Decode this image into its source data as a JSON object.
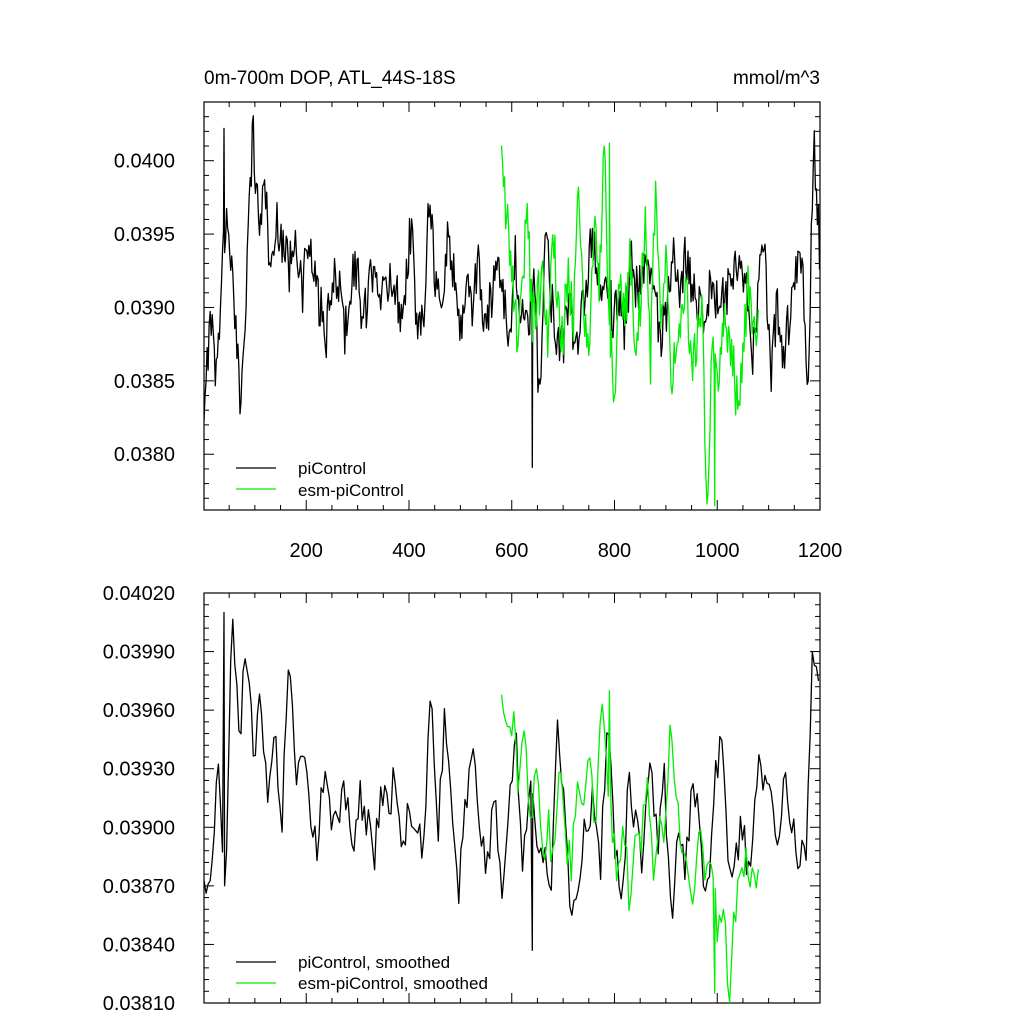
{
  "figure": {
    "title_left": "0m-700m DOP, ATL_44S-18S",
    "title_right": "mmol/m^3"
  },
  "colors": {
    "piControl": "#000000",
    "esm_piControl": "#00ee00",
    "axes": "#000000",
    "background": "#ffffff"
  },
  "chart_data": [
    {
      "type": "line",
      "title": "0m-700m DOP, ATL_44S-18S",
      "units": "mmol/m^3",
      "xlim": [
        1,
        1200
      ],
      "ylim": [
        0.03762,
        0.0404
      ],
      "x_ticks": [
        200,
        400,
        600,
        800,
        1000,
        1200
      ],
      "x_tick_labels": [
        "200",
        "400",
        "600",
        "800",
        "1000",
        "1200"
      ],
      "y_ticks": [
        0.038,
        0.0385,
        0.039,
        0.0395,
        0.04
      ],
      "y_tick_labels": [
        "0.0380",
        "0.0385",
        "0.0390",
        "0.0395",
        "0.0400"
      ],
      "legend_position": "bottom-left",
      "grid": false,
      "series": [
        {
          "name": "piControl",
          "x_range": [
            1,
            1200
          ],
          "mean": 0.03915,
          "approx_values": [
            0.03812,
            0.03905,
            0.0385,
            0.03935,
            0.03965,
            0.0389,
            0.03835,
            0.03925,
            0.04022,
            0.03955,
            0.03985,
            0.0392,
            0.0396,
            0.03945,
            0.03925,
            0.0396,
            0.03905,
            0.03945,
            0.0392,
            0.039,
            0.0388,
            0.0391,
            0.03925,
            0.0388,
            0.03915,
            0.0393,
            0.0389,
            0.03905,
            0.0394,
            0.03905,
            0.0391,
            0.03925,
            0.03895,
            0.03915,
            0.0396,
            0.03875,
            0.039,
            0.03985,
            0.03915,
            0.03895,
            0.0395,
            0.03925,
            0.0388,
            0.0392,
            0.039,
            0.03935,
            0.0388,
            0.03905,
            0.03935,
            0.0392,
            0.0387,
            0.03935,
            0.03895,
            0.0388,
            0.0392,
            0.03835,
            0.03955,
            0.03905,
            0.0388,
            0.0388,
            0.03905,
            0.03862,
            0.03895,
            0.0393,
            0.0395,
            0.039,
            0.0392,
            0.03895,
            0.03905,
            0.03885,
            0.03935,
            0.0391,
            0.03935,
            0.03925,
            0.03905,
            0.0388,
            0.039,
            0.0393,
            0.039,
            0.03938,
            0.03918,
            0.03905,
            0.039,
            0.0391,
            0.03905,
            0.03902,
            0.0391,
            0.0392,
            0.03925,
            0.03905,
            0.03865,
            0.0392,
            0.0393,
            0.03855,
            0.03905,
            0.0386,
            0.03895,
            0.0392,
            0.03935,
            0.03838,
            0.04018,
            0.03935
          ],
          "peak": [
            40,
            0.04022
          ],
          "min": [
            640,
            0.03791
          ]
        },
        {
          "name": "esm-piControl",
          "x_range": [
            580,
            1080
          ],
          "mean": 0.03905,
          "approx_values": [
            0.03995,
            0.0396,
            0.0393,
            0.03885,
            0.03915,
            0.03965,
            0.0389,
            0.03905,
            0.0392,
            0.03875,
            0.03955,
            0.039,
            0.0388,
            0.0393,
            0.03885,
            0.0398,
            0.03895,
            0.03875,
            0.0396,
            0.03905,
            0.04012,
            0.0389,
            0.0384,
            0.0392,
            0.0389,
            0.03935,
            0.0387,
            0.03905,
            0.03965,
            0.0386,
            0.03985,
            0.0388,
            0.03945,
            0.03855,
            0.0387,
            0.039,
            0.0391,
            0.0385,
            0.0388,
            0.03908,
            0.03765,
            0.0387,
            0.03845,
            0.0389,
            0.0388,
            0.03865,
            0.03828,
            0.0387,
            0.03912,
            0.0388,
            0.0389
          ],
          "peak": [
            790,
            0.04012
          ],
          "min": [
            995,
            0.03765
          ]
        }
      ]
    },
    {
      "type": "line",
      "title": "",
      "xlim": [
        1,
        1200
      ],
      "ylim": [
        0.0381,
        0.0402
      ],
      "x_ticks": [
        200,
        400,
        600,
        800,
        1000,
        1200
      ],
      "x_tick_labels": [
        "",
        "",
        "",
        "",
        "",
        ""
      ],
      "y_ticks": [
        0.0381,
        0.0384,
        0.0387,
        0.039,
        0.0393,
        0.0396,
        0.0399,
        0.0402
      ],
      "y_tick_labels": [
        "0.03810",
        "0.03840",
        "0.03870",
        "0.03900",
        "0.03930",
        "0.03960",
        "0.03990",
        "0.04020"
      ],
      "legend_position": "bottom-left",
      "grid": false,
      "series": [
        {
          "name": "piControl, smoothed",
          "x_range": [
            1,
            1200
          ],
          "approx_values": [
            0.03865,
            0.03875,
            0.03935,
            0.0387,
            0.0401,
            0.03945,
            0.03995,
            0.03935,
            0.03965,
            0.0392,
            0.03945,
            0.039,
            0.03985,
            0.0392,
            0.03935,
            0.0391,
            0.0389,
            0.0393,
            0.039,
            0.0391,
            0.0392,
            0.0388,
            0.03915,
            0.03905,
            0.0388,
            0.0392,
            0.03905,
            0.0393,
            0.03895,
            0.03905,
            0.03905,
            0.0388,
            0.0398,
            0.0389,
            0.0396,
            0.039,
            0.0387,
            0.0391,
            0.03935,
            0.03895,
            0.0388,
            0.0392,
            0.0387,
            0.03905,
            0.0395,
            0.0388,
            0.0392,
            0.039,
            0.03885,
            0.03865,
            0.03955,
            0.039,
            0.03845,
            0.0388,
            0.03905,
            0.03915,
            0.0388,
            0.0395,
            0.03895,
            0.0387,
            0.0392,
            0.039,
            0.0388,
            0.0394,
            0.0389,
            0.0393,
            0.0385,
            0.039,
            0.03875,
            0.03925,
            0.039,
            0.0386,
            0.0392,
            0.03945,
            0.0389,
            0.0388,
            0.03905,
            0.0387,
            0.0393,
            0.03925,
            0.0391,
            0.03895,
            0.0393,
            0.03905,
            0.03885,
            0.03885,
            0.0399,
            0.03965
          ],
          "peak": [
            40,
            0.0401
          ],
          "min": [
            640,
            0.03837
          ]
        },
        {
          "name": "esm-piControl, smoothed",
          "x_range": [
            580,
            1080
          ],
          "approx_values": [
            0.0396,
            0.03945,
            0.03955,
            0.0392,
            0.0395,
            0.03895,
            0.0393,
            0.0388,
            0.03905,
            0.03875,
            0.0394,
            0.0389,
            0.0388,
            0.0392,
            0.0391,
            0.0395,
            0.03895,
            0.0397,
            0.03935,
            0.039,
            0.0387,
            0.039,
            0.0386,
            0.039,
            0.0389,
            0.0393,
            0.0388,
            0.0391,
            0.0389,
            0.03965,
            0.0391,
            0.0389,
            0.0387,
            0.0386,
            0.039,
            0.0387,
            0.0388,
            0.0385,
            0.0386,
            0.03815,
            0.0386,
            0.0387,
            0.03885,
            0.03875,
            0.0388
          ],
          "peak": [
            790,
            0.0397
          ],
          "min": [
            995,
            0.03815
          ]
        }
      ]
    }
  ],
  "legends": {
    "top": [
      "piControl",
      "esm-piControl"
    ],
    "bottom": [
      "piControl, smoothed",
      "esm-piControl, smoothed"
    ]
  }
}
